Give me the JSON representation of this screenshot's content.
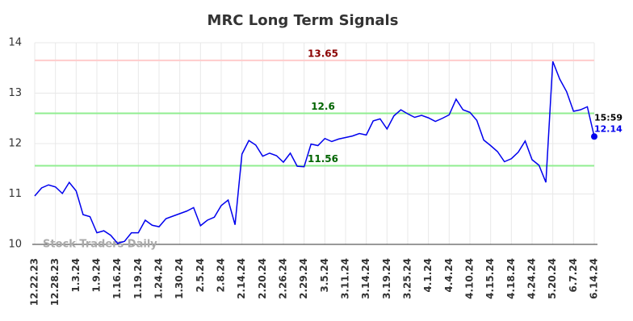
{
  "chart_data": {
    "type": "line",
    "title": "MRC Long Term Signals",
    "watermark": "Stock Traders Daily",
    "categories": [
      "12.22.23",
      null,
      null,
      "12.28.23",
      null,
      null,
      "1.3.24",
      null,
      null,
      "1.9.24",
      null,
      null,
      "1.16.24",
      null,
      null,
      "1.19.24",
      null,
      null,
      "1.24.24",
      null,
      null,
      "1.30.24",
      null,
      null,
      "2.5.24",
      null,
      null,
      "2.8.24",
      null,
      null,
      "2.14.24",
      null,
      null,
      "2.20.24",
      null,
      null,
      "2.26.24",
      null,
      null,
      "2.29.24",
      null,
      null,
      "3.5.24",
      null,
      null,
      "3.11.24",
      null,
      null,
      "3.14.24",
      null,
      null,
      "3.19.24",
      null,
      null,
      "3.25.24",
      null,
      null,
      "4.1.24",
      null,
      null,
      "4.4.24",
      null,
      null,
      "4.10.24",
      null,
      null,
      "4.15.24",
      null,
      null,
      "4.18.24",
      null,
      null,
      "4.24.24",
      null,
      null,
      "5.20.24",
      null,
      null,
      "6.7.24",
      null,
      null,
      "6.14.24"
    ],
    "values": [
      10.96,
      11.12,
      11.18,
      11.14,
      11.01,
      11.23,
      11.06,
      10.59,
      10.55,
      10.23,
      10.27,
      10.18,
      10.02,
      10.06,
      10.23,
      10.23,
      10.48,
      10.38,
      10.35,
      10.51,
      10.56,
      10.61,
      10.66,
      10.73,
      10.37,
      10.48,
      10.54,
      10.77,
      10.88,
      10.39,
      11.79,
      12.06,
      11.97,
      11.75,
      11.81,
      11.76,
      11.63,
      11.81,
      11.55,
      11.54,
      11.99,
      11.96,
      12.1,
      12.04,
      12.09,
      12.12,
      12.15,
      12.2,
      12.17,
      12.45,
      12.49,
      12.29,
      12.55,
      12.67,
      12.59,
      12.52,
      12.56,
      12.51,
      12.44,
      12.5,
      12.57,
      12.88,
      12.67,
      12.62,
      12.46,
      12.07,
      11.96,
      11.84,
      11.64,
      11.7,
      11.83,
      12.05,
      11.68,
      11.57,
      11.23,
      13.63,
      13.28,
      13.03,
      12.64,
      12.67,
      12.73,
      12.14
    ],
    "color": "#0000ee",
    "last_time": "15:59",
    "hlines": [
      {
        "value": 13.65,
        "color": "#ffcccc",
        "label_color": "#8b0000"
      },
      {
        "value": 12.6,
        "color": "#90ee90",
        "label_color": "#006400"
      },
      {
        "value": 11.56,
        "color": "#90ee90",
        "label_color": "#006400"
      }
    ],
    "ylim": [
      10,
      14
    ],
    "yticks": [
      10,
      11,
      12,
      13,
      14
    ],
    "grid": true
  }
}
